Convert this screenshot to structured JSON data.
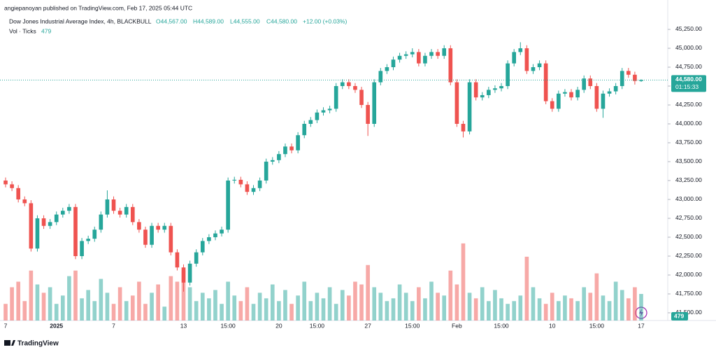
{
  "header": {
    "published": "angiepanoyan published on TradingView.com, Feb 17, 2025 05:44 UTC",
    "brand": "TradingView"
  },
  "chart_data": {
    "type": "candlestick",
    "title": "Dow Jones Industrial Average Index, 4h, BLACKBULL",
    "header_values": [
      "O44,567.00",
      "H44,589.00",
      "L44,555.00",
      "C44,580.00",
      "+12.00 (+0.03%)"
    ],
    "volume_title": "Vol · Ticks",
    "volume_label": "479",
    "up_color": "#26a69a",
    "down_color": "#ef5350",
    "categories": [
      "7",
      null,
      null,
      null,
      null,
      null,
      null,
      null,
      "2025",
      null,
      null,
      null,
      null,
      null,
      null,
      null,
      null,
      "7",
      null,
      null,
      null,
      null,
      null,
      null,
      null,
      null,
      null,
      null,
      "13",
      null,
      null,
      null,
      null,
      null,
      null,
      "15:00",
      null,
      null,
      null,
      null,
      null,
      null,
      null,
      "20",
      null,
      null,
      null,
      null,
      null,
      "15:00",
      null,
      null,
      null,
      null,
      null,
      null,
      null,
      "27",
      null,
      null,
      null,
      null,
      null,
      null,
      "15:00",
      null,
      null,
      null,
      null,
      null,
      null,
      "Feb",
      null,
      null,
      null,
      null,
      null,
      null,
      "15:00",
      null,
      null,
      null,
      null,
      null,
      null,
      null,
      "10",
      null,
      null,
      null,
      null,
      null,
      null,
      "15:00",
      null,
      null,
      null,
      null,
      null,
      null,
      "17"
    ],
    "open": [
      43250,
      43200,
      43150,
      43000,
      42950,
      42350,
      42750,
      42650,
      42700,
      42800,
      42850,
      42900,
      42250,
      42450,
      42480,
      42600,
      42800,
      43000,
      42850,
      42800,
      42900,
      42700,
      42600,
      42400,
      42650,
      42600,
      42650,
      42300,
      42100,
      41900,
      42150,
      42300,
      42450,
      42500,
      42550,
      42600,
      43250,
      43260,
      43200,
      43100,
      43150,
      43250,
      43500,
      43520,
      43600,
      43700,
      43650,
      43850,
      44000,
      44050,
      44150,
      44180,
      44200,
      44500,
      44550,
      44500,
      44450,
      44250,
      44000,
      44550,
      44700,
      44750,
      44850,
      44900,
      44920,
      44950,
      44800,
      44900,
      44950,
      44900,
      45000,
      44550,
      44000,
      43900,
      44550,
      44350,
      44380,
      44450,
      44470,
      44500,
      44800,
      44950,
      45000,
      44700,
      44750,
      44800,
      44300,
      44200,
      44400,
      44420,
      44350,
      44450,
      44600,
      44500,
      44200,
      44400,
      44430,
      44500,
      44700,
      44650,
      44567
    ],
    "high": [
      43290,
      43240,
      43190,
      43040,
      42990,
      42790,
      42790,
      42740,
      42840,
      42890,
      42940,
      42940,
      42490,
      42520,
      42640,
      42840,
      43120,
      43040,
      42890,
      42940,
      42940,
      42740,
      42640,
      42690,
      42690,
      42690,
      42690,
      42340,
      42140,
      42190,
      42340,
      42490,
      42540,
      42590,
      42640,
      43290,
      43300,
      43300,
      43240,
      43190,
      43290,
      43540,
      43560,
      43640,
      43740,
      43740,
      43890,
      44040,
      44090,
      44190,
      44220,
      44240,
      44540,
      44590,
      44590,
      44540,
      44490,
      44290,
      44590,
      44740,
      44790,
      44890,
      44940,
      44960,
      45000,
      44990,
      44940,
      44990,
      44990,
      45040,
      45040,
      44590,
      44040,
      44590,
      44590,
      44420,
      44490,
      44510,
      44540,
      44840,
      44990,
      45080,
      45040,
      44790,
      44840,
      44840,
      44340,
      44440,
      44460,
      44460,
      44490,
      44640,
      44640,
      44540,
      44440,
      44470,
      44540,
      44740,
      44740,
      44690,
      44589
    ],
    "low": [
      43160,
      43110,
      42960,
      42910,
      42310,
      42310,
      42610,
      42610,
      42660,
      42760,
      42810,
      42210,
      42210,
      42410,
      42440,
      42560,
      42760,
      42810,
      42760,
      42760,
      42660,
      42560,
      42360,
      42360,
      42560,
      42560,
      42260,
      42060,
      41780,
      41860,
      42110,
      42260,
      42410,
      42460,
      42510,
      42560,
      43210,
      43160,
      43060,
      43060,
      43110,
      43210,
      43460,
      43480,
      43560,
      43610,
      43610,
      43810,
      43960,
      44010,
      44110,
      44140,
      44160,
      44460,
      44460,
      44410,
      44210,
      43840,
      43960,
      44510,
      44660,
      44710,
      44810,
      44860,
      44880,
      44760,
      44760,
      44860,
      44860,
      44860,
      44510,
      43960,
      43820,
      43860,
      44310,
      44310,
      44340,
      44410,
      44430,
      44460,
      44760,
      44910,
      44660,
      44660,
      44710,
      44260,
      44160,
      44160,
      44360,
      44310,
      44310,
      44410,
      44460,
      44160,
      44080,
      44360,
      44390,
      44460,
      44610,
      44520,
      44555
    ],
    "close": [
      43200,
      43150,
      43000,
      42950,
      42350,
      42750,
      42650,
      42700,
      42800,
      42850,
      42900,
      42250,
      42450,
      42480,
      42600,
      42800,
      43000,
      42850,
      42800,
      42900,
      42700,
      42600,
      42400,
      42650,
      42600,
      42650,
      42300,
      42100,
      41900,
      42150,
      42300,
      42450,
      42500,
      42550,
      42600,
      43250,
      43260,
      43200,
      43100,
      43150,
      43250,
      43500,
      43520,
      43600,
      43700,
      43650,
      43850,
      44000,
      44050,
      44150,
      44180,
      44200,
      44500,
      44550,
      44500,
      44450,
      44250,
      44000,
      44550,
      44700,
      44750,
      44850,
      44900,
      44920,
      44950,
      44800,
      44900,
      44950,
      44900,
      45000,
      44550,
      44000,
      43900,
      44550,
      44350,
      44380,
      44450,
      44470,
      44500,
      44800,
      44950,
      45000,
      44700,
      44750,
      44800,
      44300,
      44200,
      44400,
      44420,
      44350,
      44450,
      44600,
      44500,
      44200,
      44400,
      44430,
      44500,
      44700,
      44650,
      44567,
      44580
    ],
    "volume": [
      300,
      600,
      700,
      350,
      900,
      650,
      500,
      600,
      300,
      450,
      800,
      900,
      400,
      550,
      350,
      750,
      500,
      300,
      600,
      350,
      450,
      700,
      300,
      500,
      650,
      250,
      800,
      700,
      900,
      600,
      350,
      500,
      400,
      550,
      300,
      700,
      450,
      350,
      600,
      300,
      500,
      400,
      650,
      350,
      550,
      300,
      450,
      700,
      350,
      500,
      400,
      600,
      300,
      550,
      450,
      700,
      650,
      1000,
      600,
      500,
      350,
      400,
      650,
      500,
      350,
      600,
      400,
      700,
      500,
      450,
      900,
      650,
      1390,
      500,
      400,
      600,
      350,
      550,
      400,
      300,
      350,
      450,
      1150,
      600,
      400,
      300,
      500,
      350,
      450,
      400,
      350,
      600,
      500,
      850,
      450,
      350,
      700,
      550,
      400,
      600,
      479
    ],
    "current_price": {
      "value": 44580,
      "label": "44,580.00"
    },
    "countdown": "01:15:33",
    "ylim": [
      41398,
      45361
    ],
    "volume_lim": [
      0,
      5400
    ],
    "yticks": [
      {
        "value": 41500,
        "label": "41,500.00"
      },
      {
        "value": 41750,
        "label": "41,750.00"
      },
      {
        "value": 42000,
        "label": "42,000.00"
      },
      {
        "value": 42250,
        "label": "42,250.00"
      },
      {
        "value": 42500,
        "label": "42,500.00"
      },
      {
        "value": 42750,
        "label": "42,750.00"
      },
      {
        "value": 43000,
        "label": "43,000.00"
      },
      {
        "value": 43250,
        "label": "43,250.00"
      },
      {
        "value": 43500,
        "label": "43,500.00"
      },
      {
        "value": 43750,
        "label": "43,750.00"
      },
      {
        "value": 44000,
        "label": "44,000.00"
      },
      {
        "value": 44250,
        "label": "44,250.00"
      },
      {
        "value": 44500,
        "label": "44,500.00"
      },
      {
        "value": 44750,
        "label": "44,750.00"
      },
      {
        "value": 45000,
        "label": "45,000.00"
      },
      {
        "value": 45250,
        "label": "45,250.00"
      }
    ],
    "grid": false
  }
}
